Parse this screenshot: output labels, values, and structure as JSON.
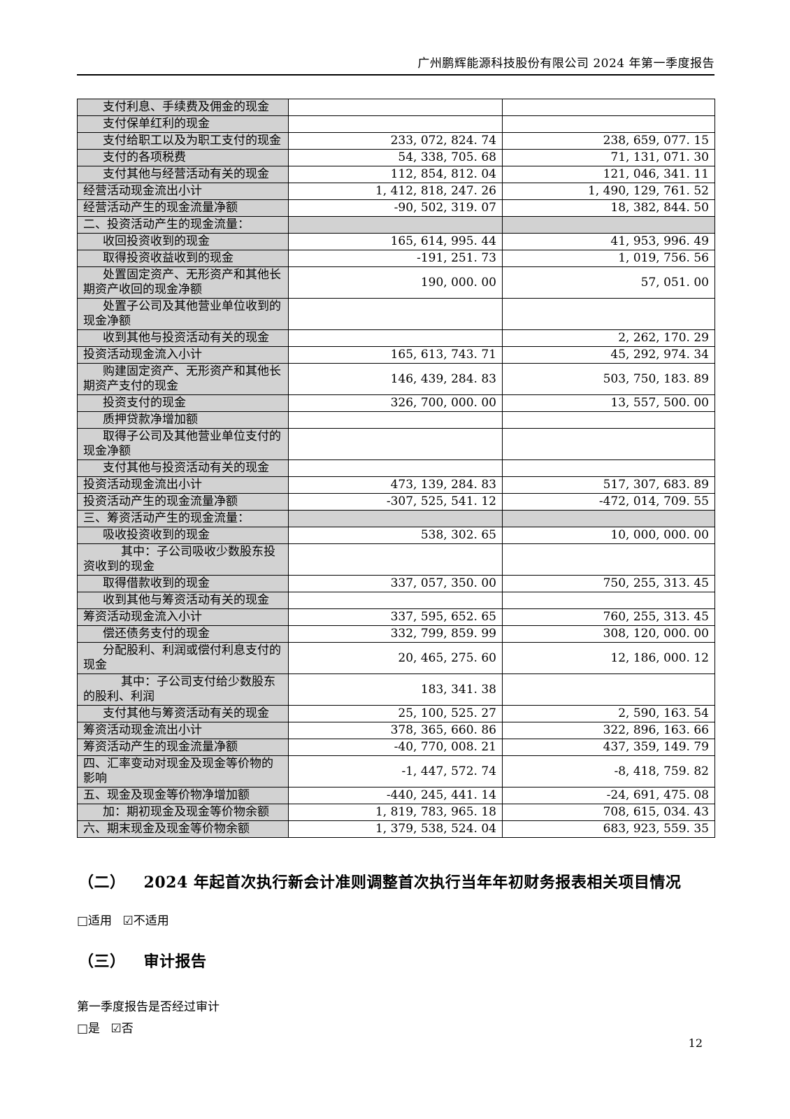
{
  "page": {
    "header_title": "广州鹏辉能源科技股份有限公司 2024 年第一季度报告",
    "page_number": "12"
  },
  "cash_flow_table": {
    "rows": [
      {
        "label": "支付利息、手续费及佣金的现金",
        "current": "",
        "prior": "",
        "indent": 1,
        "section": false
      },
      {
        "label": "支付保单红利的现金",
        "current": "",
        "prior": "",
        "indent": 1,
        "section": false
      },
      {
        "label": "支付给职工以及为职工支付的现金",
        "current": "233, 072, 824. 74",
        "prior": "238, 659, 077. 15",
        "indent": 1,
        "section": false
      },
      {
        "label": "支付的各项税费",
        "current": "54, 338, 705. 68",
        "prior": "71, 131, 071. 30",
        "indent": 1,
        "section": false
      },
      {
        "label": "支付其他与经营活动有关的现金",
        "current": "112, 854, 812. 04",
        "prior": "121, 046, 341. 11",
        "indent": 1,
        "section": false
      },
      {
        "label": "经营活动现金流出小计",
        "current": "1, 412, 818, 247. 26",
        "prior": "1, 490, 129, 761. 52",
        "indent": 0,
        "section": false
      },
      {
        "label": "经营活动产生的现金流量净额",
        "current": "-90, 502, 319. 07",
        "prior": "18, 382, 844. 50",
        "indent": 0,
        "section": false
      },
      {
        "label": "二、投资活动产生的现金流量：",
        "current": "",
        "prior": "",
        "indent": 0,
        "section": true
      },
      {
        "label": "收回投资收到的现金",
        "current": "165, 614, 995. 44",
        "prior": "41, 953, 996. 49",
        "indent": 1,
        "section": false
      },
      {
        "label": "取得投资收益收到的现金",
        "current": "-191, 251. 73",
        "prior": "1, 019, 756. 56",
        "indent": 1,
        "section": false
      },
      {
        "label": "处置固定资产、无形资产和其他长期资产收回的现金净额",
        "current": "190, 000. 00",
        "prior": "57, 051. 00",
        "indent": 1,
        "section": false
      },
      {
        "label": "处置子公司及其他营业单位收到的现金净额",
        "current": "",
        "prior": "",
        "indent": 1,
        "section": false
      },
      {
        "label": "收到其他与投资活动有关的现金",
        "current": "",
        "prior": "2, 262, 170. 29",
        "indent": 1,
        "section": false
      },
      {
        "label": "投资活动现金流入小计",
        "current": "165, 613, 743. 71",
        "prior": "45, 292, 974. 34",
        "indent": 0,
        "section": false
      },
      {
        "label": "购建固定资产、无形资产和其他长期资产支付的现金",
        "current": "146, 439, 284. 83",
        "prior": "503, 750, 183. 89",
        "indent": 1,
        "section": false
      },
      {
        "label": "投资支付的现金",
        "current": "326, 700, 000. 00",
        "prior": "13, 557, 500. 00",
        "indent": 1,
        "section": false
      },
      {
        "label": "质押贷款净增加额",
        "current": "",
        "prior": "",
        "indent": 1,
        "section": false
      },
      {
        "label": "取得子公司及其他营业单位支付的现金净额",
        "current": "",
        "prior": "",
        "indent": 1,
        "section": false
      },
      {
        "label": "支付其他与投资活动有关的现金",
        "current": "",
        "prior": "",
        "indent": 1,
        "section": false
      },
      {
        "label": "投资活动现金流出小计",
        "current": "473, 139, 284. 83",
        "prior": "517, 307, 683. 89",
        "indent": 0,
        "section": false
      },
      {
        "label": "投资活动产生的现金流量净额",
        "current": "-307, 525, 541. 12",
        "prior": "-472, 014, 709. 55",
        "indent": 0,
        "section": false
      },
      {
        "label": "三、筹资活动产生的现金流量：",
        "current": "",
        "prior": "",
        "indent": 0,
        "section": true
      },
      {
        "label": "吸收投资收到的现金",
        "current": "538, 302. 65",
        "prior": "10, 000, 000. 00",
        "indent": 1,
        "section": false
      },
      {
        "label": "其中：子公司吸收少数股东投资收到的现金",
        "current": "",
        "prior": "",
        "indent": 2,
        "section": false
      },
      {
        "label": "取得借款收到的现金",
        "current": "337, 057, 350. 00",
        "prior": "750, 255, 313. 45",
        "indent": 1,
        "section": false
      },
      {
        "label": "收到其他与筹资活动有关的现金",
        "current": "",
        "prior": "",
        "indent": 1,
        "section": false
      },
      {
        "label": "筹资活动现金流入小计",
        "current": "337, 595, 652. 65",
        "prior": "760, 255, 313. 45",
        "indent": 0,
        "section": false
      },
      {
        "label": "偿还债务支付的现金",
        "current": "332, 799, 859. 99",
        "prior": "308, 120, 000. 00",
        "indent": 1,
        "section": false
      },
      {
        "label": "分配股利、利润或偿付利息支付的现金",
        "current": "20, 465, 275. 60",
        "prior": "12, 186, 000. 12",
        "indent": 1,
        "section": false
      },
      {
        "label": "其中：子公司支付给少数股东的股利、利润",
        "current": "183, 341. 38",
        "prior": "",
        "indent": 2,
        "section": false
      },
      {
        "label": "支付其他与筹资活动有关的现金",
        "current": "25, 100, 525. 27",
        "prior": "2, 590, 163. 54",
        "indent": 1,
        "section": false
      },
      {
        "label": "筹资活动现金流出小计",
        "current": "378, 365, 660. 86",
        "prior": "322, 896, 163. 66",
        "indent": 0,
        "section": false
      },
      {
        "label": "筹资活动产生的现金流量净额",
        "current": "-40, 770, 008. 21",
        "prior": "437, 359, 149. 79",
        "indent": 0,
        "section": false
      },
      {
        "label": "四、汇率变动对现金及现金等价物的影响",
        "current": "-1, 447, 572. 74",
        "prior": "-8, 418, 759. 82",
        "indent": 0,
        "section": false
      },
      {
        "label": "五、现金及现金等价物净增加额",
        "current": "-440, 245, 441. 14",
        "prior": "-24, 691, 475. 08",
        "indent": 0,
        "section": false
      },
      {
        "label": "加：期初现金及现金等价物余额",
        "current": "1, 819, 783, 965. 18",
        "prior": "708, 615, 034. 43",
        "indent": 1,
        "section": false
      },
      {
        "label": "六、期末现金及现金等价物余额",
        "current": "1, 379, 538, 524. 04",
        "prior": "683, 923, 559. 35",
        "indent": 0,
        "section": false
      }
    ]
  },
  "section_2": {
    "number": "（二）",
    "title": "2024 年起首次执行新会计准则调整首次执行当年年初财务报表相关项目情况",
    "applicable_option": "□适用",
    "not_applicable_option": "☑不适用"
  },
  "section_3": {
    "number": "（三）",
    "title": "审计报告",
    "question": "第一季度报告是否经过审计",
    "yes_option": "□是",
    "no_option": "☑否"
  },
  "colors": {
    "cell_shading": "#d2d2d2",
    "border": "#000000",
    "background": "#ffffff"
  }
}
